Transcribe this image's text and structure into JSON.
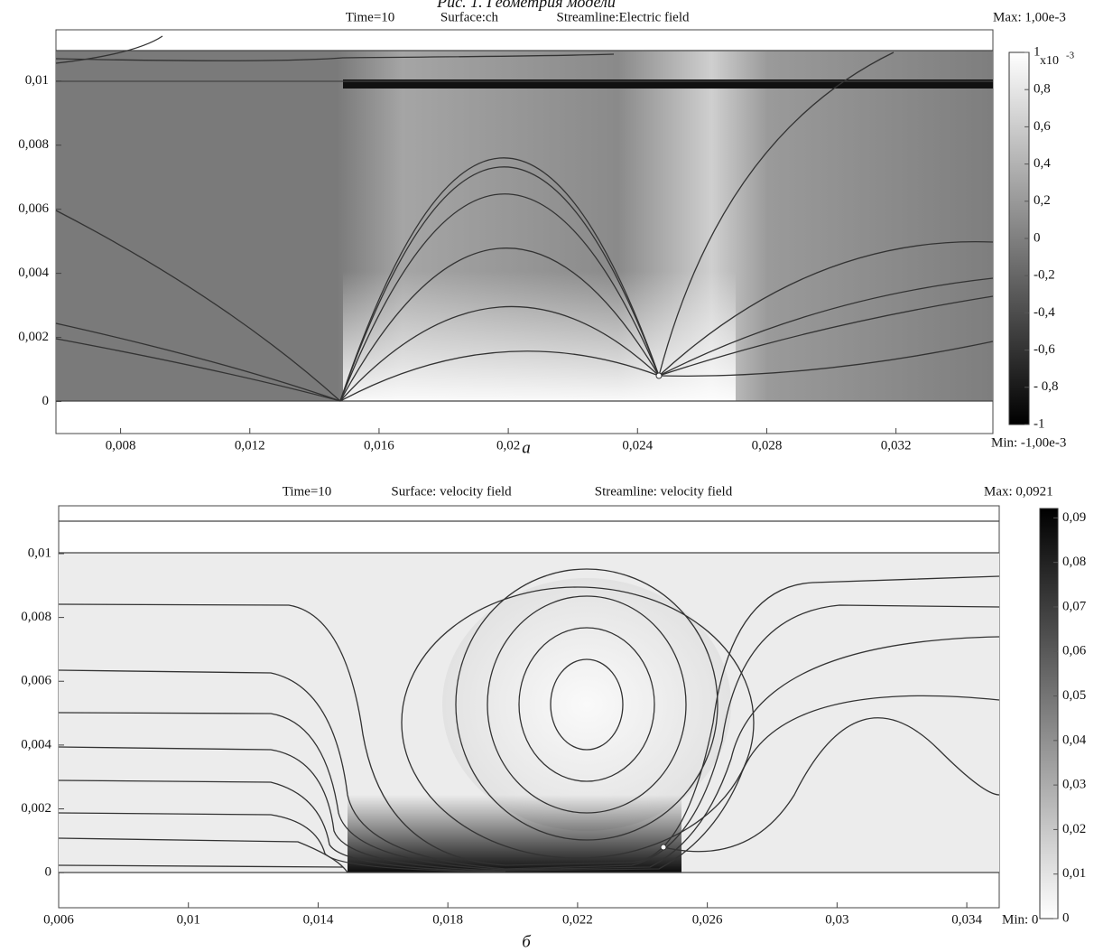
{
  "caption_top": "Рис. 1. Геометрия модели",
  "plots": [
    {
      "title_time": "Time=10",
      "title_surface": "Surface:ch",
      "title_streamline": "Streamline:Electric field",
      "max_label": "Max: 1,00e-3",
      "min_label": "Min: -1,00e-3",
      "panel_label": "а",
      "xlim": [
        0.006,
        0.035
      ],
      "ylim": [
        -0.001,
        0.0116
      ],
      "xticks": [
        {
          "value": 0.008,
          "label": "0,008"
        },
        {
          "value": 0.012,
          "label": "0,012"
        },
        {
          "value": 0.016,
          "label": "0,016"
        },
        {
          "value": 0.02,
          "label": "0,02"
        },
        {
          "value": 0.024,
          "label": "0,024"
        },
        {
          "value": 0.028,
          "label": "0,028"
        },
        {
          "value": 0.032,
          "label": "0,032"
        }
      ],
      "yticks": [
        0,
        {
          "value": 0.002,
          "label": "0,002"
        },
        {
          "value": 0.004,
          "label": "0,004"
        },
        {
          "value": 0.006,
          "label": "0,006"
        },
        {
          "value": 0.008,
          "label": "0,008"
        },
        {
          "value": 0.01,
          "label": "0,01"
        }
      ],
      "colorbar": {
        "range": [
          -1,
          1
        ],
        "exponent": "x10",
        "exponent_power": "-3",
        "colors": [
          "#000000",
          "#ffffff"
        ],
        "ticks": [
          1,
          {
            "value": 0.8,
            "label": "0,8"
          },
          {
            "value": 0.6,
            "label": "0,6"
          },
          {
            "value": 0.4,
            "label": "0,4"
          },
          {
            "value": 0.2,
            "label": "0,2"
          },
          0,
          {
            "value": -0.2,
            "label": "-0,2"
          },
          {
            "value": -0.4,
            "label": "-0,4"
          },
          {
            "value": -0.6,
            "label": "-0,6"
          },
          {
            "value": -0.8,
            "label": "- 0,8"
          },
          -1
        ]
      }
    },
    {
      "title_time": "Time=10",
      "title_surface": "Surface: velocity field",
      "title_streamline": "Streamline: velocity field",
      "max_label": "Max: 0,0921",
      "min_label": "Min: 0",
      "panel_label": "б",
      "xlim": [
        0.006,
        0.035
      ],
      "ylim": [
        -0.0011,
        0.0115
      ],
      "xticks": [
        {
          "value": 0.006,
          "label": "0,006"
        },
        {
          "value": 0.01,
          "label": "0,01"
        },
        {
          "value": 0.014,
          "label": "0,014"
        },
        {
          "value": 0.018,
          "label": "0,018"
        },
        {
          "value": 0.022,
          "label": "0,022"
        },
        {
          "value": 0.026,
          "label": "0,026"
        },
        {
          "value": 0.03,
          "label": "0,03"
        },
        {
          "value": 0.034,
          "label": "0,034"
        }
      ],
      "yticks": [
        0,
        {
          "value": 0.002,
          "label": "0,002"
        },
        {
          "value": 0.004,
          "label": "0,004"
        },
        {
          "value": 0.006,
          "label": "0,006"
        },
        {
          "value": 0.008,
          "label": "0,008"
        },
        {
          "value": 0.01,
          "label": "0,01"
        }
      ],
      "colorbar": {
        "range": [
          0,
          0.0921
        ],
        "colors": [
          "#ffffff",
          "#000000"
        ],
        "ticks": [
          {
            "value": 0.09,
            "label": "0,09"
          },
          {
            "value": 0.08,
            "label": "0,08"
          },
          {
            "value": 0.07,
            "label": "0,07"
          },
          {
            "value": 0.06,
            "label": "0,06"
          },
          {
            "value": 0.05,
            "label": "0,05"
          },
          {
            "value": 0.04,
            "label": "0,04"
          },
          {
            "value": 0.03,
            "label": "0,03"
          },
          {
            "value": 0.02,
            "label": "0,02"
          },
          {
            "value": 0.01,
            "label": "0,01"
          },
          0
        ]
      }
    }
  ]
}
